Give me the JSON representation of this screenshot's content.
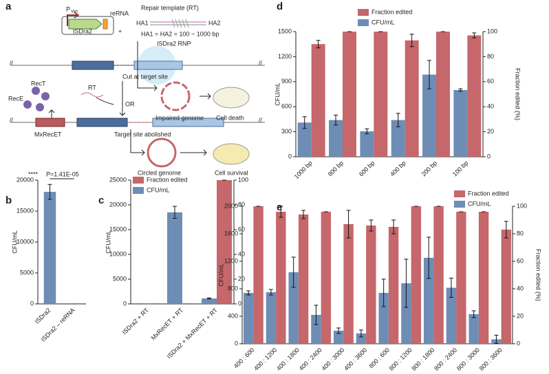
{
  "panel_labels": [
    "a",
    "b",
    "c",
    "d",
    "e"
  ],
  "diagram": {
    "promoter": "P",
    "promoter_subscript": "Van",
    "reRNA": "reRNA",
    "gene": "ISDra2",
    "plus": "+",
    "repair_template": "Repair template (RT)",
    "ha1": "HA1",
    "ha2": "HA2",
    "homology_length": "HA1 = HA2 = 100 ~ 1000 bp",
    "rnp": "ISDra2 RNP",
    "cut": "Cut at target site",
    "rect": "RecT",
    "rece": "RecE",
    "rt": "RT",
    "or": "OR",
    "impaired": "Impaired genome",
    "death": "Cell death",
    "mxrecet": "MxRecET",
    "abolished": "Target site abolished",
    "circled": "Circled genome",
    "survival": "Cell survival",
    "break_mark": "//"
  },
  "chart_data": [
    {
      "type": "bar",
      "ylabel": "CFU/mL",
      "categories": [
        "ISDra2",
        "ISDra2 – reRNA"
      ],
      "values": [
        18100,
        0
      ],
      "errors": [
        1200,
        0
      ],
      "color": "#6e8db5",
      "ylim": [
        0,
        20000
      ],
      "yticks": [
        0,
        5000,
        10000,
        15000,
        20000
      ],
      "annotations": [
        "****",
        "P=1.41E-05"
      ]
    },
    {
      "type": "bar",
      "ylabel": "CFU/mL",
      "y2label": "Fraction edited (%)",
      "categories": [
        "ISDra2 + RT",
        "MxRecET + RT",
        "ISDra2 + MxRecET + RT"
      ],
      "series": [
        {
          "name": "Fraction edited",
          "color": "#c5676b",
          "axis": "y2",
          "values": [
            0,
            0,
            100
          ],
          "errors": [
            0,
            0,
            0
          ]
        },
        {
          "name": "CFU/mL",
          "color": "#6e8db5",
          "values": [
            0,
            18500,
            1100
          ],
          "errors": [
            0,
            1200,
            100
          ]
        }
      ],
      "ylim": [
        0,
        25000
      ],
      "yticks": [
        0,
        5000,
        10000,
        15000,
        20000,
        25000
      ],
      "y2lim": [
        0,
        100
      ],
      "y2ticks": [
        0,
        20,
        40,
        60,
        80,
        100
      ]
    },
    {
      "type": "bar",
      "ylabel": "CFU/mL",
      "y2label": "Fraction edited (%)",
      "categories": [
        "1000 bp",
        "800 bp",
        "600 bp",
        "400 bp",
        "200 bp",
        "100 bp"
      ],
      "series": [
        {
          "name": "Fraction edited",
          "color": "#c5676b",
          "axis": "y2",
          "values": [
            90,
            100,
            100,
            93,
            100,
            97
          ],
          "errors": [
            3,
            0,
            0,
            5,
            0,
            2
          ]
        },
        {
          "name": "CFU/mL",
          "color": "#6e8db5",
          "values": [
            410,
            440,
            305,
            440,
            985,
            800
          ],
          "errors": [
            70,
            60,
            30,
            80,
            170,
            15
          ]
        }
      ],
      "ylim": [
        0,
        1500
      ],
      "yticks": [
        0,
        300,
        600,
        900,
        1200,
        1500
      ],
      "y2lim": [
        0,
        100
      ],
      "y2ticks": [
        0,
        20,
        40,
        60,
        80,
        100
      ]
    },
    {
      "type": "bar",
      "ylabel": "CFU/mL",
      "y2label": "Fraction edited (%)",
      "categories": [
        "400 : 600",
        "400 : 1200",
        "400 : 1800",
        "400 : 2400",
        "400 : 3000",
        "400 : 3600",
        "800 : 600",
        "800 : 1200",
        "800 : 1800",
        "800 : 2400",
        "800 : 3000",
        "800 : 3600"
      ],
      "series": [
        {
          "name": "Fraction edited",
          "color": "#c5676b",
          "axis": "y2",
          "values": [
            100,
            96,
            94,
            96,
            87,
            86,
            85,
            100,
            100,
            96,
            96,
            83
          ],
          "errors": [
            0,
            4,
            3,
            0,
            10,
            4,
            5,
            0,
            0,
            0,
            0,
            6
          ]
        },
        {
          "name": "CFU/mL",
          "color": "#6e8db5",
          "values": [
            740,
            750,
            1040,
            420,
            190,
            150,
            740,
            880,
            1250,
            815,
            430,
            65
          ],
          "errors": [
            30,
            40,
            220,
            140,
            40,
            50,
            200,
            350,
            300,
            140,
            50,
            60
          ]
        }
      ],
      "ylim": [
        0,
        2000
      ],
      "yticks": [
        0,
        400,
        800,
        1200,
        1600,
        2000
      ],
      "y2lim": [
        0,
        100
      ],
      "y2ticks": [
        0,
        20,
        40,
        60,
        80,
        100
      ]
    }
  ]
}
